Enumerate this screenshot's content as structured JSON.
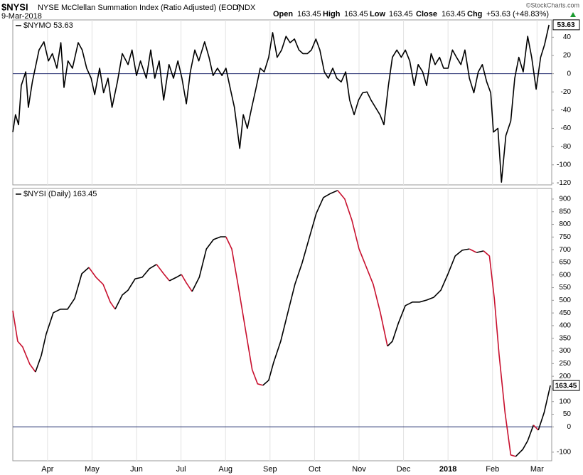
{
  "header": {
    "symbol": "$NYSI",
    "name": "NYSE McClellan Summation Index (Ratio Adjusted) (EOD)",
    "exchange": "INDX",
    "date": "9-Mar-2018",
    "open_label": "Open",
    "open": 163.45,
    "high_label": "High",
    "high": 163.45,
    "low_label": "Low",
    "low": 163.45,
    "close_label": "Close",
    "close": 163.45,
    "chg_label": "Chg",
    "chg": "+53.63 (+48.83%)",
    "credit": "©StockCharts.com"
  },
  "chart_data": [
    {
      "type": "line",
      "label": "$NYMO 53.63",
      "xlim": [
        2.22,
        14.33
      ],
      "ylim": [
        -122,
        59
      ],
      "yticks": [
        -120,
        -100,
        -80,
        -60,
        -40,
        -20,
        0,
        20,
        40
      ],
      "reference_line": 0,
      "reference_color": "#1f2a6b",
      "x": [
        2.22,
        2.28,
        2.35,
        2.41,
        2.51,
        2.57,
        2.66,
        2.81,
        2.92,
        3.02,
        3.11,
        3.21,
        3.3,
        3.37,
        3.46,
        3.56,
        3.69,
        3.78,
        3.88,
        3.98,
        4.06,
        4.17,
        4.26,
        4.36,
        4.45,
        4.57,
        4.68,
        4.81,
        4.9,
        5.0,
        5.09,
        5.22,
        5.32,
        5.41,
        5.51,
        5.61,
        5.73,
        5.83,
        5.93,
        6.02,
        6.12,
        6.21,
        6.31,
        6.4,
        6.53,
        6.63,
        6.72,
        6.82,
        6.92,
        7.01,
        7.11,
        7.2,
        7.32,
        7.4,
        7.49,
        7.59,
        7.68,
        7.78,
        7.87,
        7.97,
        8.06,
        8.16,
        8.26,
        8.36,
        8.45,
        8.55,
        8.65,
        8.74,
        8.84,
        8.93,
        9.03,
        9.12,
        9.22,
        9.31,
        9.41,
        9.5,
        9.6,
        9.7,
        9.79,
        9.89,
        9.99,
        10.08,
        10.18,
        10.27,
        10.37,
        10.47,
        10.56,
        10.66,
        10.75,
        10.85,
        10.95,
        11.04,
        11.14,
        11.24,
        11.33,
        11.43,
        11.52,
        11.62,
        11.71,
        11.81,
        11.9,
        12.0,
        12.1,
        12.19,
        12.29,
        12.38,
        12.48,
        12.58,
        12.68,
        12.77,
        12.87,
        12.96,
        13.02,
        13.12,
        13.2,
        13.3,
        13.41,
        13.5,
        13.59,
        13.69,
        13.79,
        13.88,
        13.98,
        14.08,
        14.17,
        14.27
      ],
      "series": [
        {
          "color": "#000000",
          "values": [
            -64,
            -45,
            -56,
            -13,
            2,
            -37,
            -9,
            26,
            35,
            14,
            22,
            6,
            34,
            -15,
            14,
            6,
            34,
            26,
            6,
            -5,
            -23,
            6,
            -21,
            -5,
            -37,
            -9,
            22,
            10,
            26,
            -2,
            14,
            -5,
            26,
            -5,
            14,
            -29,
            10,
            -5,
            14,
            -5,
            -33,
            2,
            26,
            14,
            35,
            18,
            -2,
            6,
            -2,
            6,
            -17,
            -37,
            -82,
            -45,
            -60,
            -37,
            -17,
            6,
            2,
            18,
            45,
            18,
            26,
            41,
            34,
            38,
            26,
            22,
            22,
            26,
            38,
            26,
            2,
            -5,
            6,
            -5,
            -9,
            2,
            -29,
            -45,
            -29,
            -21,
            -20,
            -29,
            -37,
            -45,
            -56,
            -13,
            18,
            26,
            18,
            26,
            14,
            -13,
            10,
            2,
            -13,
            22,
            10,
            18,
            6,
            6,
            26,
            18,
            10,
            26,
            -5,
            -21,
            2,
            10,
            -9,
            -21,
            -64,
            -60,
            -119,
            -68,
            -52,
            -5,
            18,
            2,
            41,
            18,
            -17,
            18,
            32,
            53.63
          ]
        }
      ]
    },
    {
      "type": "line",
      "label": "$NYSI (Daily) 163.45",
      "xlim": [
        2.22,
        14.33
      ],
      "ylim": [
        -134,
        942
      ],
      "yticks": [
        -100,
        0,
        50,
        100,
        150,
        200,
        250,
        300,
        350,
        400,
        450,
        500,
        550,
        600,
        650,
        700,
        750,
        800,
        850,
        900
      ],
      "xticks": [
        {
          "value": 3,
          "label": "Apr"
        },
        {
          "value": 4,
          "label": "May"
        },
        {
          "value": 5,
          "label": "Jun"
        },
        {
          "value": 6,
          "label": "Jul"
        },
        {
          "value": 7,
          "label": "Aug"
        },
        {
          "value": 8,
          "label": "Sep"
        },
        {
          "value": 9,
          "label": "Oct"
        },
        {
          "value": 10,
          "label": "Nov"
        },
        {
          "value": 11,
          "label": "Dec"
        },
        {
          "value": 12,
          "label": "2018"
        },
        {
          "value": 13,
          "label": "Feb"
        },
        {
          "value": 14,
          "label": "Mar"
        }
      ],
      "reference_line": 0,
      "reference_color": "#1f2a6b",
      "down_color": "#c8102e",
      "x": [
        2.22,
        2.33,
        2.44,
        2.6,
        2.73,
        2.86,
        2.97,
        3.13,
        3.29,
        3.45,
        3.61,
        3.77,
        3.93,
        4.09,
        4.25,
        4.41,
        4.52,
        4.68,
        4.81,
        4.97,
        5.13,
        5.29,
        5.45,
        5.61,
        5.74,
        5.9,
        6.01,
        6.12,
        6.25,
        6.41,
        6.57,
        6.73,
        6.89,
        7.01,
        7.14,
        7.28,
        7.44,
        7.6,
        7.72,
        7.84,
        7.97,
        8.08,
        8.24,
        8.4,
        8.56,
        8.72,
        8.88,
        9.04,
        9.2,
        9.36,
        9.52,
        9.68,
        9.84,
        10,
        10.16,
        10.32,
        10.48,
        10.64,
        10.75,
        10.88,
        11.04,
        11.2,
        11.36,
        11.52,
        11.68,
        11.84,
        12,
        12.16,
        12.32,
        12.48,
        12.64,
        12.8,
        12.93,
        13.04,
        13.15,
        13.28,
        13.41,
        13.52,
        13.68,
        13.79,
        13.92,
        14.03,
        14.16,
        14.3
      ],
      "series": [
        {
          "color": "#000000",
          "values": [
            459,
            338,
            316,
            248,
            217,
            282,
            366,
            451,
            465,
            465,
            507,
            605,
            630,
            591,
            563,
            493,
            465,
            521,
            540,
            585,
            591,
            625,
            642,
            605,
            577,
            591,
            602,
            569,
            535,
            591,
            703,
            740,
            751,
            751,
            703,
            563,
            394,
            226,
            170,
            164,
            184,
            254,
            338,
            451,
            563,
            647,
            746,
            844,
            906,
            922,
            934,
            900,
            816,
            703,
            633,
            563,
            451,
            319,
            338,
            408,
            479,
            493,
            493,
            501,
            512,
            540,
            605,
            675,
            698,
            703,
            689,
            695,
            675,
            507,
            282,
            57,
            -111,
            -117,
            -89,
            -55,
            7,
            -13,
            57,
            163.45
          ]
        }
      ]
    }
  ]
}
